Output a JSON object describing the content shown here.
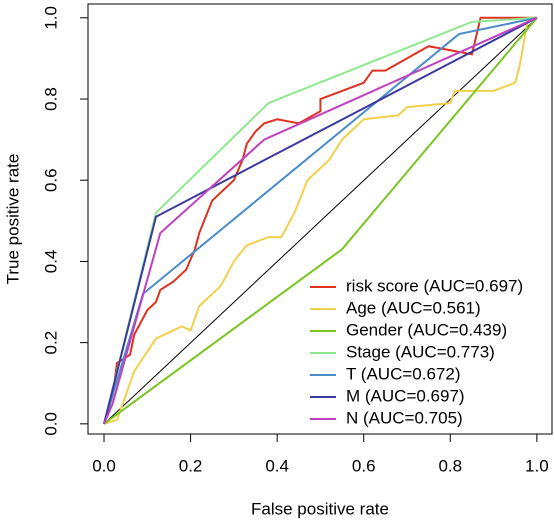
{
  "chart_data": {
    "type": "line",
    "xlabel": "False positive rate",
    "ylabel": "True positive rate",
    "xlim": [
      -0.037,
      1.035
    ],
    "ylim": [
      -0.025,
      1.034
    ],
    "xticks": [
      {
        "value": 0,
        "label": "0.0"
      },
      0.2,
      0.4,
      0.6,
      0.8,
      {
        "value": 1,
        "label": "1.0"
      }
    ],
    "yticks": [
      {
        "value": 0,
        "label": "0.0"
      },
      0.2,
      0.4,
      0.6,
      0.8,
      {
        "value": 1,
        "label": "1.0"
      }
    ],
    "legend": "bottom-right",
    "series": [
      {
        "name": "risk score (AUC=0.697)",
        "color": "#e0301e",
        "x": [
          0,
          0.02,
          0.03,
          0.06,
          0.07,
          0.1,
          0.12,
          0.13,
          0.16,
          0.19,
          0.21,
          0.22,
          0.25,
          0.3,
          0.32,
          0.33,
          0.35,
          0.37,
          0.4,
          0.45,
          0.5,
          0.5,
          0.55,
          0.6,
          0.62,
          0.65,
          0.7,
          0.75,
          0.8,
          0.85,
          0.87,
          0.93,
          1
        ],
        "values": [
          0,
          0.07,
          0.15,
          0.17,
          0.22,
          0.28,
          0.3,
          0.33,
          0.35,
          0.38,
          0.43,
          0.47,
          0.55,
          0.6,
          0.65,
          0.69,
          0.72,
          0.74,
          0.75,
          0.74,
          0.77,
          0.8,
          0.82,
          0.84,
          0.87,
          0.87,
          0.9,
          0.93,
          0.92,
          0.91,
          1.0,
          1.0,
          1
        ]
      },
      {
        "name": "Age (AUC=0.561)",
        "color": "#f2d04a",
        "x": [
          0,
          0.03,
          0.07,
          0.12,
          0.18,
          0.2,
          0.22,
          0.27,
          0.3,
          0.33,
          0.38,
          0.41,
          0.44,
          0.47,
          0.52,
          0.55,
          0.6,
          0.68,
          0.7,
          0.8,
          0.81,
          0.9,
          0.95,
          0.96,
          0.98,
          1
        ],
        "values": [
          0,
          0.01,
          0.13,
          0.21,
          0.24,
          0.23,
          0.29,
          0.34,
          0.4,
          0.44,
          0.46,
          0.46,
          0.52,
          0.6,
          0.65,
          0.7,
          0.75,
          0.76,
          0.78,
          0.79,
          0.82,
          0.82,
          0.84,
          0.88,
          1,
          1
        ]
      },
      {
        "name": "Gender (AUC=0.439)",
        "color": "#7ac520",
        "x": [
          0,
          0.55,
          1
        ],
        "values": [
          0,
          0.43,
          1
        ]
      },
      {
        "name": "Stage (AUC=0.773)",
        "color": "#8ee88e",
        "x": [
          0,
          0.12,
          0.38,
          0.85,
          1
        ],
        "values": [
          0,
          0.52,
          0.79,
          0.99,
          1
        ]
      },
      {
        "name": "T (AUC=0.672)",
        "color": "#4a8cc8",
        "x": [
          0,
          0.09,
          0.82,
          1
        ],
        "values": [
          0,
          0.32,
          0.96,
          1
        ]
      },
      {
        "name": "M (AUC=0.697)",
        "color": "#3a3a9e",
        "x": [
          0,
          0.12,
          1
        ],
        "values": [
          0,
          0.51,
          1
        ]
      },
      {
        "name": "N (AUC=0.705)",
        "color": "#c040c0",
        "x": [
          0,
          0.02,
          0.13,
          0.37,
          1
        ],
        "values": [
          0,
          0.05,
          0.47,
          0.7,
          1
        ]
      }
    ]
  }
}
